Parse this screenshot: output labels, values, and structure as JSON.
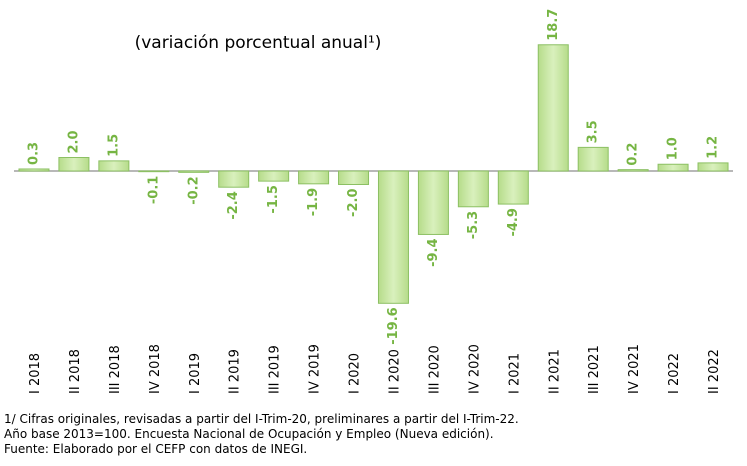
{
  "chart_data": {
    "type": "bar",
    "title": "(variación porcentual anual¹)",
    "categories": [
      "I 2018",
      "II 2018",
      "III 2018",
      "IV 2018",
      "I 2019",
      "II 2019",
      "III 2019",
      "IV 2019",
      "I 2020",
      "II 2020",
      "III 2020",
      "IV 2020",
      "I 2021",
      "II 2021",
      "III 2021",
      "IV 2021",
      "I 2022",
      "II 2022"
    ],
    "values": [
      0.3,
      2.0,
      1.5,
      -0.1,
      -0.2,
      -2.4,
      -1.5,
      -1.9,
      -2.0,
      -19.6,
      -9.4,
      -5.3,
      -4.9,
      18.7,
      3.5,
      0.2,
      1.0,
      1.2
    ],
    "value_labels": [
      "0.3",
      "2.0",
      "1.5",
      "-0.1",
      "-0.2",
      "-2.4",
      "-1.5",
      "-1.9",
      "-2.0",
      "-19.6",
      "-9.4",
      "-5.3",
      "-4.9",
      "18.7",
      "3.5",
      "0.2",
      "1.0",
      "1.2"
    ],
    "color": "#c8e6a4",
    "ylim": [
      -20,
      20
    ],
    "notes": [
      "1/ Cifras originales, revisadas a partir del I-Trim-20, preliminares a partir del I-Trim-22.",
      "Año base 2013=100. Encuesta Nacional de Ocupación y Empleo (Nueva edición).",
      "Fuente: Elaborado por el CEFP con datos de INEGI."
    ]
  }
}
